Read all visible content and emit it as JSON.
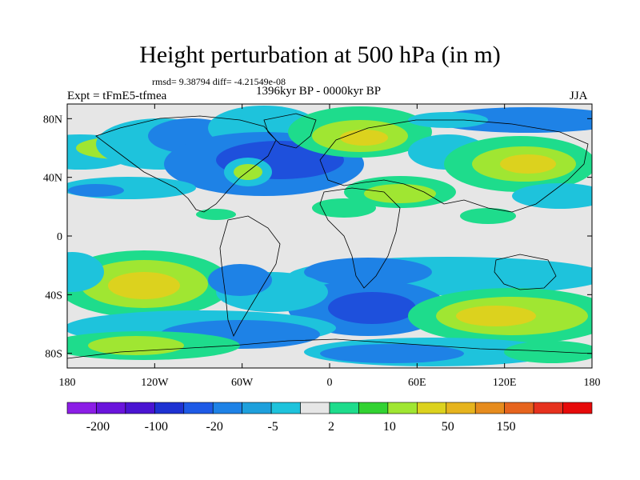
{
  "title": "Height perturbation at 500 hPa (in m)",
  "stats": "rmsd= 9.38794 diff= -4.21549e-08",
  "experiment": "Expt = tFmE5-tfmea",
  "period": "1396kyr BP - 0000kyr BP",
  "season": "JJA",
  "lat_ticks": [
    "80N",
    "40N",
    "0",
    "40S",
    "80S"
  ],
  "lon_ticks": [
    "180",
    "120W",
    "60W",
    "0",
    "60E",
    "120E",
    "180"
  ],
  "colorbar": {
    "labels": [
      "-200",
      "-100",
      "-20",
      "-5",
      "2",
      "10",
      "50",
      "150"
    ],
    "colors": [
      "#8c1ee6",
      "#6a14dc",
      "#4a14d2",
      "#1e32d2",
      "#1e5ae6",
      "#1e82e6",
      "#1ea0dc",
      "#1ec3dc",
      "#e6e6e6",
      "#1edc8c",
      "#32d232",
      "#a0e632",
      "#dcd21e",
      "#e6b41e",
      "#e68c1e",
      "#e6641e",
      "#e6321e",
      "#e60a0a"
    ]
  },
  "map_colors": {
    "background": "#e6e6e6",
    "deep_blue": "#1e50dc",
    "blue": "#1e82e6",
    "light_blue": "#1ec3dc",
    "green": "#1edc8c",
    "lime": "#a0e632",
    "yellow": "#dcd21e",
    "orange": "#e6b41e"
  }
}
